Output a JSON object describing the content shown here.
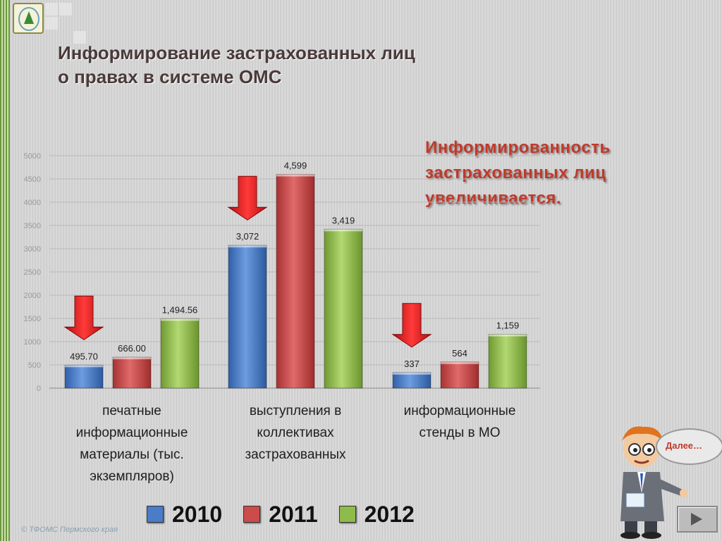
{
  "title_line1": "Информирование застрахованных лиц",
  "title_line2": "о правах в системе ОМС",
  "note_lines": [
    "Информированность",
    "застрахованных лиц",
    "увеличивается."
  ],
  "bubble_text": "Далее…",
  "footer": "© ТФОМС Пермского края",
  "colors": {
    "2010": "#4a7cc8",
    "2011": "#cc4b4b",
    "2012": "#8fbb4a",
    "arrow": "#e8191a"
  },
  "icons": {
    "logo": "tree-in-circle-logo",
    "mascot": "cartoon-man-pointing",
    "next": "play-triangle-icon"
  },
  "chart_data": {
    "type": "bar",
    "categories": [
      [
        "печатные",
        "информационные",
        "материалы (тыс.",
        "экземпляров)"
      ],
      [
        "выступления в",
        "коллективах",
        "застрахованных"
      ],
      [
        "информационные",
        "стенды в МО"
      ]
    ],
    "series": [
      {
        "name": "2010",
        "values": [
          495.7,
          3072,
          337
        ],
        "labels": [
          "495.70",
          "3,072",
          "337"
        ]
      },
      {
        "name": "2011",
        "values": [
          666.0,
          4599,
          564
        ],
        "labels": [
          "666.00",
          "4,599",
          "564"
        ]
      },
      {
        "name": "2012",
        "values": [
          1494.56,
          3419,
          1159
        ],
        "labels": [
          "1,494.56",
          "3,419",
          "1,159"
        ]
      }
    ],
    "ylim": [
      0,
      5000
    ],
    "yticks": [
      "0",
      "500",
      "1000",
      "1500",
      "2000",
      "2500",
      "3000",
      "3500",
      "4000",
      "4500",
      "5000"
    ],
    "grid": true,
    "legend": "bottom",
    "annotations": "down arrows above the 2010 bar of each category"
  }
}
